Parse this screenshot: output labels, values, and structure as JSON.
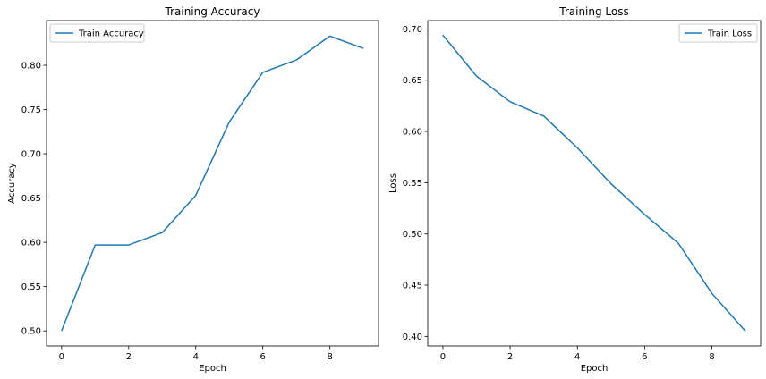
{
  "colors": {
    "series": "#1f77b4"
  },
  "chart_data": [
    {
      "type": "line",
      "title": "Training Accuracy",
      "xlabel": "Epoch",
      "ylabel": "Accuracy",
      "xlim": [
        -0.45,
        9.45
      ],
      "ylim": [
        0.483,
        0.8505
      ],
      "xticks": [
        0,
        2,
        4,
        6,
        8
      ],
      "xtick_labels": [
        "0",
        "2",
        "4",
        "6",
        "8"
      ],
      "yticks": [
        0.5,
        0.55,
        0.6,
        0.65,
        0.7,
        0.75,
        0.8
      ],
      "ytick_labels": [
        "0.50",
        "0.55",
        "0.60",
        "0.65",
        "0.70",
        "0.75",
        "0.80"
      ],
      "grid": false,
      "legend": "top-left",
      "series": [
        {
          "name": "Train Accuracy",
          "x": [
            0,
            1,
            2,
            3,
            4,
            5,
            6,
            7,
            8,
            9
          ],
          "y": [
            0.5,
            0.597,
            0.597,
            0.611,
            0.653,
            0.736,
            0.792,
            0.806,
            0.833,
            0.819
          ]
        }
      ]
    },
    {
      "type": "line",
      "title": "Training Loss",
      "xlabel": "Epoch",
      "ylabel": "Loss",
      "xlim": [
        -0.45,
        9.45
      ],
      "ylim": [
        0.3907,
        0.7082
      ],
      "xticks": [
        0,
        2,
        4,
        6,
        8
      ],
      "xtick_labels": [
        "0",
        "2",
        "4",
        "6",
        "8"
      ],
      "yticks": [
        0.4,
        0.45,
        0.5,
        0.55,
        0.6,
        0.65,
        0.7
      ],
      "ytick_labels": [
        "0.40",
        "0.45",
        "0.50",
        "0.55",
        "0.60",
        "0.65",
        "0.70"
      ],
      "grid": false,
      "legend": "top-right",
      "series": [
        {
          "name": "Train Loss",
          "x": [
            0,
            1,
            2,
            3,
            4,
            5,
            6,
            7,
            8,
            9
          ],
          "y": [
            0.694,
            0.654,
            0.629,
            0.615,
            0.584,
            0.549,
            0.519,
            0.491,
            0.442,
            0.405
          ]
        }
      ]
    }
  ]
}
